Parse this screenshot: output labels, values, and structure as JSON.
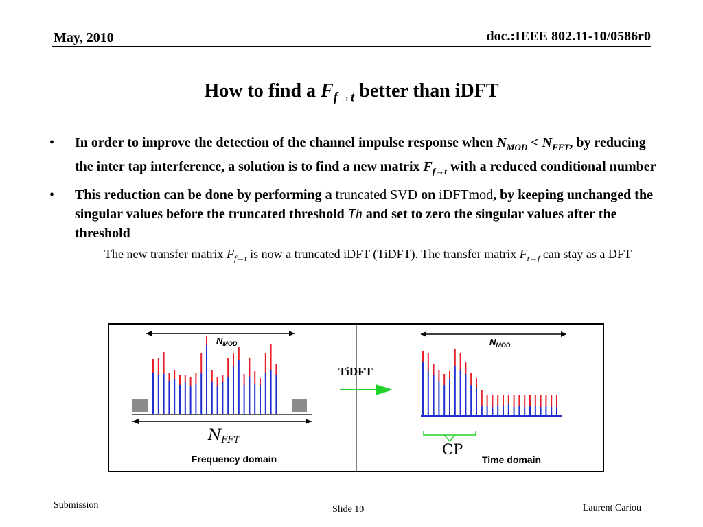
{
  "header": {
    "date": "May, 2010",
    "doc_id": "doc.:IEEE 802.11-10/0586r0"
  },
  "title": {
    "prefix": "How to find a ",
    "var": "F",
    "sub": "f→t",
    "suffix": " better than iDFT"
  },
  "bullets": [
    {
      "marker": "•",
      "t1": "In order to improve the detection of the channel impulse response when ",
      "v1": "N",
      "s1": "MOD",
      "t2": " < ",
      "v2": "N",
      "s2": "FFT",
      "t3": ", by reducing the inter tap interference, a solution is to find a new matrix ",
      "v3": "F",
      "s3": "f→t",
      "t4": " with a reduced conditional number"
    },
    {
      "marker": "•",
      "t1": "This reduction can be done by performing a ",
      "n1": "truncated SVD",
      "t2": " on ",
      "n2": "iDFTmod",
      "t3": ", by keeping unchanged the singular values before the truncated threshold ",
      "v1": "Th",
      "t4": " and set to zero the singular values after the threshold"
    }
  ],
  "sub_bullet": {
    "marker": "–",
    "t1": "The new transfer matrix ",
    "v1": "F",
    "s1": "f→t",
    "t2": " is now a truncated iDFT (TiDFT). The transfer matrix ",
    "v2": "F",
    "s2": "t→f",
    "t3": " can stay as a DFT"
  },
  "figure": {
    "left_label": "Frequency domain",
    "right_label": "Time domain",
    "arrow_label": "TiDFT",
    "nmod_var": "N",
    "nmod_sub": "MOD",
    "nfft_var": "N",
    "nfft_sub": "FFT",
    "cp_label": "CP",
    "colors": {
      "red": "#e8202a",
      "blue": "#1f2fd0",
      "green": "#22d22a",
      "gray": "#8c8c8c"
    }
  },
  "footer": {
    "left": "Submission",
    "center": "Slide 10",
    "right": "Laurent Cariou"
  }
}
